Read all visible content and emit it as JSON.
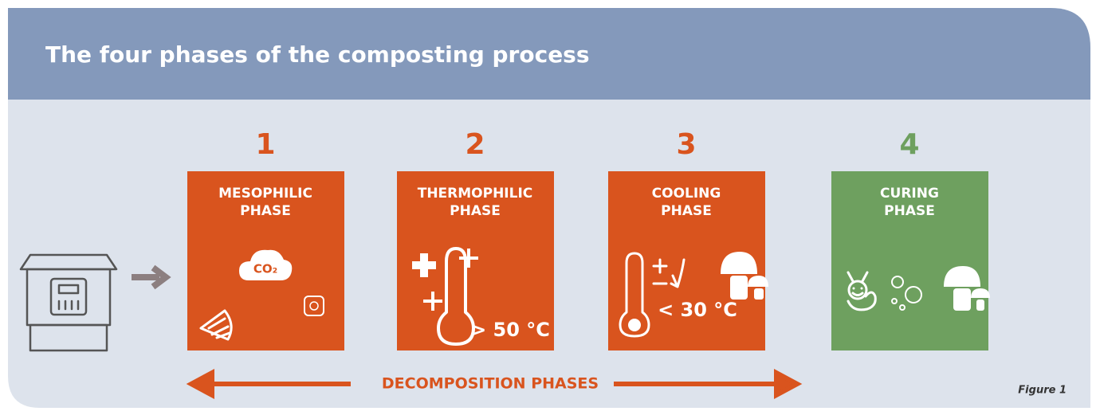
{
  "title": "The four phases of the composting process",
  "phases": [
    {
      "number": "1",
      "title": [
        "MESOPHILIC",
        "PHASE"
      ]
    },
    {
      "number": "2",
      "title": [
        "THERMOPHILIC",
        "PHASE"
      ],
      "temperature": "> 50 °C"
    },
    {
      "number": "3",
      "title": [
        "COOLING",
        "PHASE"
      ],
      "temperature": "< 30 °C"
    },
    {
      "number": "4",
      "title": [
        "CURING",
        "PHASE"
      ]
    }
  ],
  "co2_label": "CO₂",
  "decomposition_label": "DECOMPOSITION PHASES",
  "figure_label": "Figure 1"
}
